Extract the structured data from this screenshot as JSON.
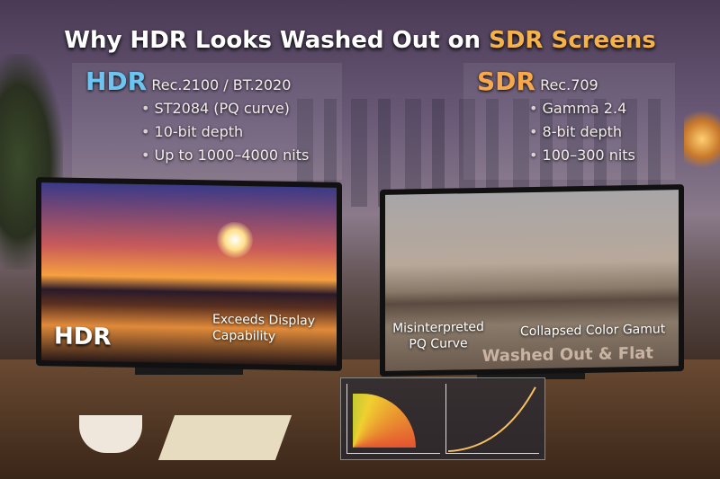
{
  "title": {
    "pre": "Why HDR Looks Washed Out on ",
    "highlight": "SDR Screens"
  },
  "hdr": {
    "label": "HDR",
    "standard": "Rec.2100 / BT.2020",
    "bullets": [
      "ST2084 (PQ curve)",
      "10-bit depth",
      "Up to 1000–4000 nits"
    ]
  },
  "sdr": {
    "label": "SDR",
    "standard": "Rec.709",
    "bullets": [
      "Gamma 2.4",
      "8-bit depth",
      "100–300 nits"
    ]
  },
  "hdr_monitor": {
    "label": "HDR",
    "callout": "Exceeds Display Capability"
  },
  "sdr_monitor": {
    "callout_left": "Misinterpreted PQ Curve",
    "callout_right": "Collapsed Color Gamut",
    "caption": "Washed Out & Flat"
  },
  "colors": {
    "hdr_accent": "#6cc4f2",
    "sdr_accent": "#f6a84a"
  }
}
